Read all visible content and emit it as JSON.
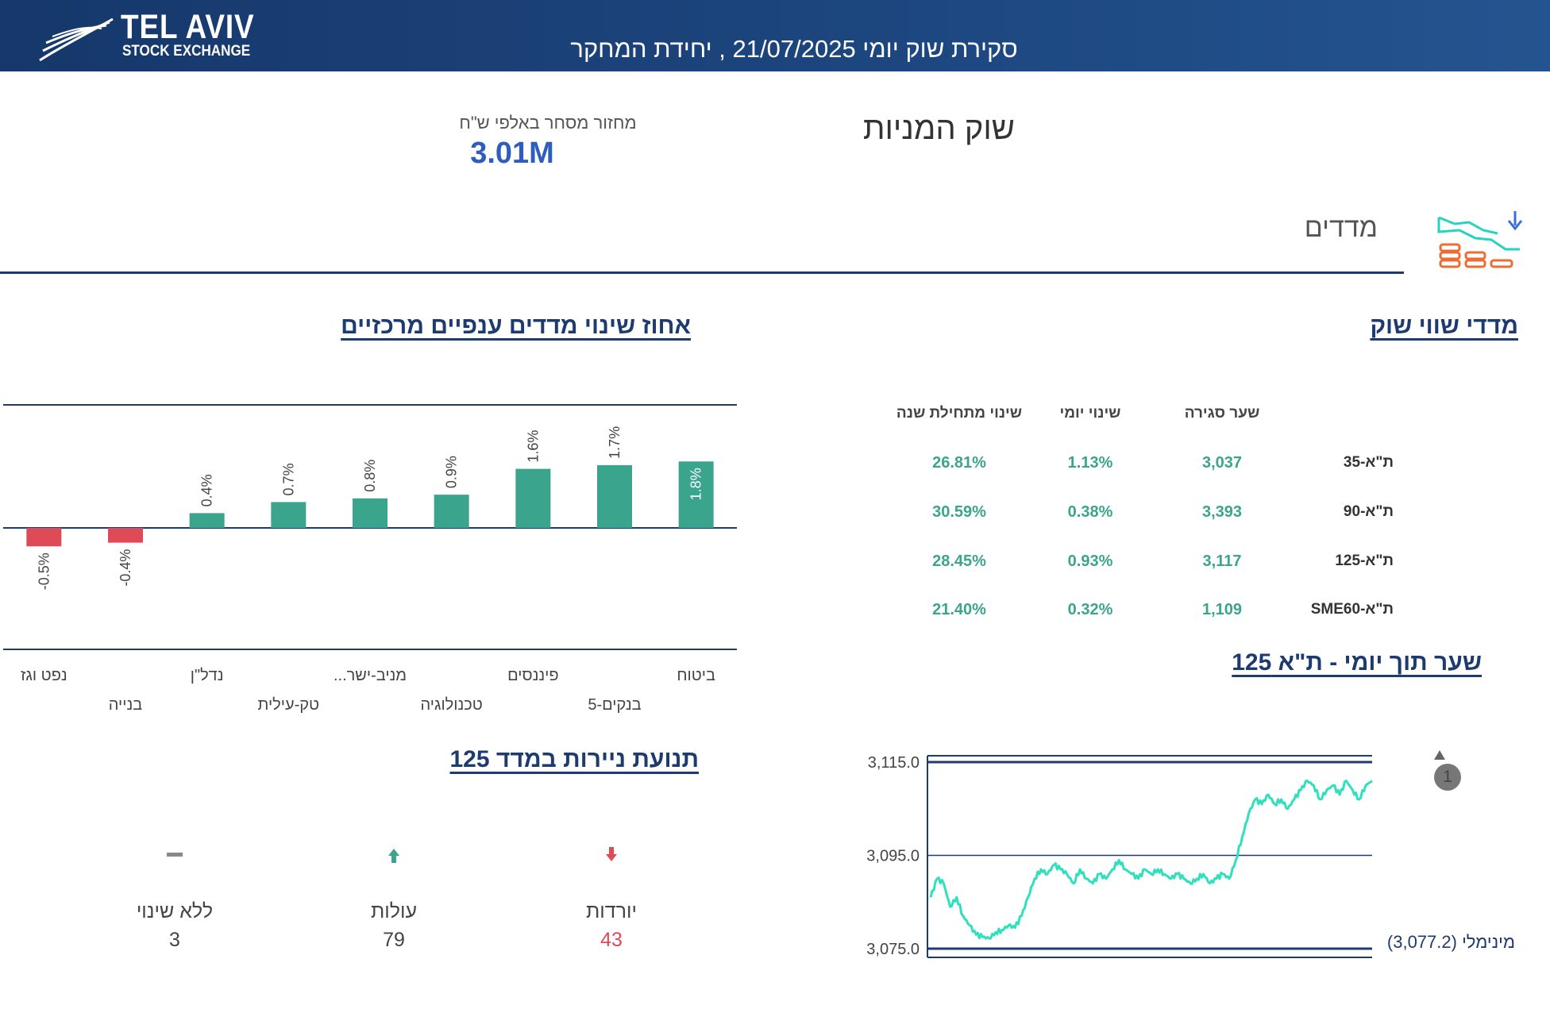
{
  "header": {
    "logo_name": "TEL AVIV",
    "logo_sub": "STOCK EXCHANGE",
    "title": "סקירת שוק יומי 21/07/2025 , יחידת המחקר"
  },
  "page": {
    "title": "שוק המניות",
    "turnover_label": "מחזור מסחר באלפי ש\"ח",
    "turnover_value": "3.01M"
  },
  "section": {
    "label": "מדדים",
    "icon": "indices-chart-icon"
  },
  "market_indices": {
    "title": "מדדי שווי שוק",
    "headers": {
      "close": "שער סגירה",
      "daily": "שינוי יומי",
      "ytd": "שינוי מתחילת שנה"
    },
    "rows": [
      {
        "name": "ת\"א-35",
        "close": "3,037",
        "daily": "1.13%",
        "ytd": "26.81%"
      },
      {
        "name": "ת\"א-90",
        "close": "3,393",
        "daily": "0.38%",
        "ytd": "30.59%"
      },
      {
        "name": "ת\"א-125",
        "close": "3,117",
        "daily": "0.93%",
        "ytd": "28.45%"
      },
      {
        "name": "ת\"א-SME60",
        "close": "1,109",
        "daily": "0.32%",
        "ytd": "21.40%"
      }
    ]
  },
  "sector_chart": {
    "title": "אחוז שינוי מדדים ענפיים מרכזיים"
  },
  "intraday": {
    "title": "שער תוך יומי - ת\"א 125",
    "min_label": "מינימלי (3,077.2)",
    "badge": "1",
    "yticks": [
      "3,115.0",
      "3,095.0",
      "3,075.0"
    ]
  },
  "movement": {
    "title": "תנועת ניירות במדד 125",
    "down": {
      "label": "יורדות",
      "value": "43"
    },
    "up": {
      "label": "עולות",
      "value": "79"
    },
    "flat": {
      "label": "ללא שינוי",
      "value": "3"
    }
  },
  "colors": {
    "header": "#1d4780",
    "navy": "#1e3b70",
    "positive": "#3aa58c",
    "negative": "#de4a56",
    "line": "#2fe0bd",
    "turnover": "#2f5cbf",
    "icon_orange": "#f06b2f",
    "icon_teal": "#26d3c0",
    "icon_blue": "#3a6fd8"
  },
  "chart_data": [
    {
      "type": "bar",
      "categories": [
        "ביטוח",
        "בנקים-5",
        "פיננסים",
        "טכנולוגיה",
        "מניב-ישר...",
        "טק-עילית",
        "נדל\"ן",
        "בנייה",
        "נפט וגז"
      ],
      "values": [
        1.8,
        1.7,
        1.6,
        0.9,
        0.8,
        0.7,
        0.4,
        -0.4,
        -0.5
      ],
      "data_labels": [
        "1.8%",
        "1.7%",
        "1.6%",
        "0.9%",
        "0.8%",
        "0.7%",
        "0.4%",
        "-0.4%",
        "-0.5%"
      ],
      "ylim": [
        -1.6,
        1.6
      ],
      "grid": false
    },
    {
      "type": "line",
      "ylim": [
        3075,
        3115
      ],
      "yticks": [
        3075,
        3095,
        3115
      ],
      "min_value": 3077.2,
      "y": [
        3086,
        3090,
        3089,
        3084,
        3086,
        3082,
        3080,
        3078,
        3077.5,
        3077.2,
        3078.5,
        3079,
        3080,
        3079.5,
        3082,
        3086,
        3090,
        3092,
        3091,
        3093,
        3092,
        3091,
        3089,
        3092,
        3090,
        3089,
        3091,
        3090,
        3092,
        3094,
        3092,
        3091,
        3090,
        3092,
        3091,
        3092,
        3091,
        3090,
        3091,
        3090,
        3089,
        3090,
        3091,
        3089,
        3090,
        3091,
        3090,
        3094,
        3099,
        3104,
        3107,
        3106,
        3108,
        3106,
        3107,
        3105,
        3107,
        3109,
        3111,
        3110,
        3107,
        3109,
        3110,
        3108,
        3111,
        3109,
        3107,
        3110,
        3111
      ]
    }
  ]
}
